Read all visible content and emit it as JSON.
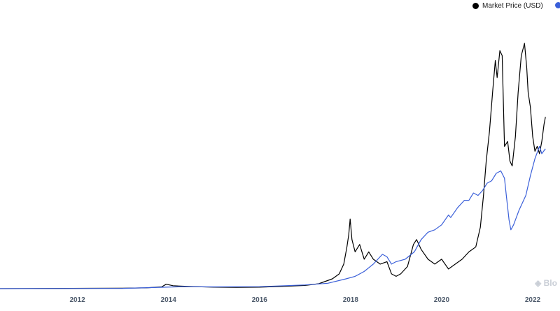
{
  "legend": {
    "series_0_label": "Market Price (USD)",
    "series_0_color": "#000000",
    "series_1_color": "#3a5fd9"
  },
  "watermark": {
    "text": "Blo",
    "icon": "blockchain-cube-icon"
  },
  "chart_data": {
    "type": "line",
    "title": "",
    "xlabel": "",
    "ylabel": "",
    "x_tick_labels": [
      "2012",
      "2014",
      "2016",
      "2018",
      "2020",
      "2022"
    ],
    "xlim": [
      2010.3,
      2022.6
    ],
    "ylim": [
      0,
      1
    ],
    "y_unit_note": "y axis unlabeled; values are relative heights (fraction of plotted range)",
    "grid": false,
    "legend_position": "top-right",
    "series": [
      {
        "name": "Market Price (USD)",
        "color": "#000000",
        "points": [
          [
            2010.3,
            0.0
          ],
          [
            2013.0,
            0.002
          ],
          [
            2013.5,
            0.003
          ],
          [
            2013.85,
            0.007
          ],
          [
            2013.95,
            0.018
          ],
          [
            2014.1,
            0.012
          ],
          [
            2014.3,
            0.01
          ],
          [
            2014.6,
            0.008
          ],
          [
            2015.0,
            0.006
          ],
          [
            2015.5,
            0.005
          ],
          [
            2016.0,
            0.006
          ],
          [
            2016.5,
            0.009
          ],
          [
            2017.0,
            0.013
          ],
          [
            2017.3,
            0.02
          ],
          [
            2017.6,
            0.04
          ],
          [
            2017.75,
            0.06
          ],
          [
            2017.85,
            0.1
          ],
          [
            2017.92,
            0.17
          ],
          [
            2017.96,
            0.22
          ],
          [
            2017.99,
            0.284
          ],
          [
            2018.03,
            0.2
          ],
          [
            2018.1,
            0.15
          ],
          [
            2018.2,
            0.18
          ],
          [
            2018.3,
            0.12
          ],
          [
            2018.4,
            0.15
          ],
          [
            2018.5,
            0.12
          ],
          [
            2018.65,
            0.1
          ],
          [
            2018.8,
            0.11
          ],
          [
            2018.9,
            0.06
          ],
          [
            2019.0,
            0.05
          ],
          [
            2019.1,
            0.06
          ],
          [
            2019.25,
            0.09
          ],
          [
            2019.38,
            0.18
          ],
          [
            2019.45,
            0.2
          ],
          [
            2019.55,
            0.16
          ],
          [
            2019.7,
            0.12
          ],
          [
            2019.85,
            0.1
          ],
          [
            2020.0,
            0.12
          ],
          [
            2020.15,
            0.08
          ],
          [
            2020.3,
            0.1
          ],
          [
            2020.45,
            0.12
          ],
          [
            2020.6,
            0.15
          ],
          [
            2020.75,
            0.17
          ],
          [
            2020.85,
            0.25
          ],
          [
            2020.92,
            0.38
          ],
          [
            2020.98,
            0.52
          ],
          [
            2021.05,
            0.64
          ],
          [
            2021.12,
            0.8
          ],
          [
            2021.18,
            0.93
          ],
          [
            2021.22,
            0.86
          ],
          [
            2021.28,
            0.97
          ],
          [
            2021.33,
            0.95
          ],
          [
            2021.38,
            0.58
          ],
          [
            2021.45,
            0.6
          ],
          [
            2021.5,
            0.52
          ],
          [
            2021.55,
            0.5
          ],
          [
            2021.62,
            0.62
          ],
          [
            2021.68,
            0.8
          ],
          [
            2021.75,
            0.95
          ],
          [
            2021.82,
            1.0
          ],
          [
            2021.87,
            0.9
          ],
          [
            2021.9,
            0.8
          ],
          [
            2021.95,
            0.74
          ],
          [
            2022.0,
            0.62
          ],
          [
            2022.05,
            0.56
          ],
          [
            2022.1,
            0.58
          ],
          [
            2022.15,
            0.55
          ],
          [
            2022.2,
            0.6
          ],
          [
            2022.25,
            0.67
          ],
          [
            2022.28,
            0.7
          ]
        ]
      },
      {
        "name": "",
        "color": "#3a5fd9",
        "points": [
          [
            2010.3,
            0.0
          ],
          [
            2013.0,
            0.001
          ],
          [
            2013.95,
            0.006
          ],
          [
            2014.3,
            0.008
          ],
          [
            2015.0,
            0.007
          ],
          [
            2016.0,
            0.008
          ],
          [
            2017.0,
            0.015
          ],
          [
            2017.5,
            0.022
          ],
          [
            2017.9,
            0.04
          ],
          [
            2018.1,
            0.05
          ],
          [
            2018.3,
            0.07
          ],
          [
            2018.5,
            0.1
          ],
          [
            2018.7,
            0.14
          ],
          [
            2018.8,
            0.13
          ],
          [
            2018.9,
            0.1
          ],
          [
            2019.0,
            0.11
          ],
          [
            2019.2,
            0.12
          ],
          [
            2019.4,
            0.15
          ],
          [
            2019.55,
            0.2
          ],
          [
            2019.7,
            0.23
          ],
          [
            2019.85,
            0.24
          ],
          [
            2020.0,
            0.26
          ],
          [
            2020.15,
            0.3
          ],
          [
            2020.2,
            0.29
          ],
          [
            2020.35,
            0.33
          ],
          [
            2020.5,
            0.36
          ],
          [
            2020.6,
            0.36
          ],
          [
            2020.7,
            0.39
          ],
          [
            2020.8,
            0.38
          ],
          [
            2020.9,
            0.4
          ],
          [
            2021.0,
            0.43
          ],
          [
            2021.1,
            0.44
          ],
          [
            2021.2,
            0.47
          ],
          [
            2021.3,
            0.48
          ],
          [
            2021.38,
            0.45
          ],
          [
            2021.42,
            0.38
          ],
          [
            2021.48,
            0.28
          ],
          [
            2021.52,
            0.24
          ],
          [
            2021.58,
            0.26
          ],
          [
            2021.7,
            0.32
          ],
          [
            2021.85,
            0.38
          ],
          [
            2021.95,
            0.46
          ],
          [
            2022.05,
            0.53
          ],
          [
            2022.15,
            0.58
          ],
          [
            2022.2,
            0.55
          ],
          [
            2022.28,
            0.57
          ]
        ]
      }
    ]
  }
}
